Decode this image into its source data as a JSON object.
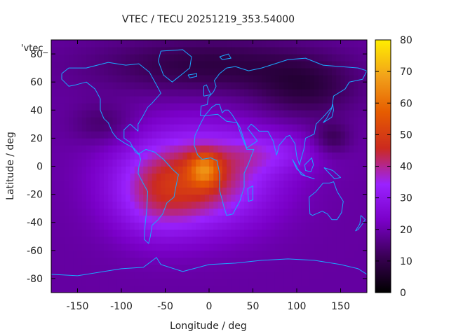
{
  "chart_data": {
    "type": "heatmap",
    "title": "VTEC / TECU 20251219_353.54000",
    "xlabel": "Longitude / deg",
    "ylabel": "Latitude / deg",
    "xlim": [
      -180,
      180
    ],
    "ylim": [
      -90,
      90
    ],
    "x_ticks": [
      -150,
      -100,
      -50,
      0,
      50,
      100,
      150
    ],
    "y_ticks": [
      -80,
      -60,
      -40,
      -20,
      0,
      20,
      40,
      60,
      80
    ],
    "y_tick_labels": [
      "-80",
      "-60",
      "-40",
      "-20",
      "0",
      "20",
      "40",
      "60",
      "80"
    ],
    "colorbar": {
      "range": [
        0,
        80
      ],
      "ticks": [
        0,
        10,
        20,
        30,
        40,
        50,
        60,
        70,
        80
      ],
      "palette_stops": [
        "#000000",
        "#3a0055",
        "#7a00c8",
        "#9a22ff",
        "#cc2a1e",
        "#e65c00",
        "#f2a21a",
        "#ffee00"
      ]
    },
    "legend": "'vtec_",
    "field": {
      "background_tecu": 19,
      "peak_tecu": 66,
      "anomalies": [
        {
          "lon": -15,
          "lat": -8,
          "sigma_lon": 58,
          "sigma_lat": 24,
          "amp": 27
        },
        {
          "lon": -5,
          "lat": -2,
          "sigma_lon": 12,
          "sigma_lat": 8,
          "amp": 20
        },
        {
          "lon": -60,
          "lat": -25,
          "sigma_lon": 35,
          "sigma_lat": 20,
          "amp": 9
        },
        {
          "lon": 70,
          "lat": 10,
          "sigma_lon": 40,
          "sigma_lat": 10,
          "amp": 9
        },
        {
          "lon": 0,
          "lat": 72,
          "sigma_lon": 90,
          "sigma_lat": 14,
          "amp": -10
        },
        {
          "lon": 110,
          "lat": 55,
          "sigma_lon": 40,
          "sigma_lat": 14,
          "amp": -9
        },
        {
          "lon": -120,
          "lat": 30,
          "sigma_lon": 25,
          "sigma_lat": 10,
          "amp": -6
        },
        {
          "lon": 140,
          "lat": 20,
          "sigma_lon": 15,
          "sigma_lat": 8,
          "amp": -8
        }
      ]
    },
    "coastlines": [
      {
        "name": "north-america",
        "points": [
          [
            -168,
            66
          ],
          [
            -160,
            70
          ],
          [
            -140,
            70
          ],
          [
            -115,
            74
          ],
          [
            -95,
            72
          ],
          [
            -80,
            73
          ],
          [
            -68,
            67
          ],
          [
            -60,
            58
          ],
          [
            -55,
            52
          ],
          [
            -65,
            45
          ],
          [
            -70,
            42
          ],
          [
            -76,
            35
          ],
          [
            -81,
            30
          ],
          [
            -81,
            25
          ],
          [
            -90,
            30
          ],
          [
            -97,
            26
          ],
          [
            -97,
            20
          ],
          [
            -90,
            17
          ],
          [
            -84,
            10
          ],
          [
            -79,
            8
          ],
          [
            -86,
            13
          ],
          [
            -95,
            16
          ],
          [
            -105,
            20
          ],
          [
            -110,
            24
          ],
          [
            -115,
            31
          ],
          [
            -120,
            34
          ],
          [
            -124,
            40
          ],
          [
            -124,
            48
          ],
          [
            -130,
            55
          ],
          [
            -140,
            60
          ],
          [
            -152,
            58
          ],
          [
            -160,
            57
          ],
          [
            -168,
            62
          ],
          [
            -168,
            66
          ]
        ]
      },
      {
        "name": "greenland",
        "points": [
          [
            -55,
            82
          ],
          [
            -30,
            83
          ],
          [
            -20,
            78
          ],
          [
            -22,
            70
          ],
          [
            -42,
            60
          ],
          [
            -52,
            65
          ],
          [
            -58,
            75
          ],
          [
            -55,
            82
          ]
        ]
      },
      {
        "name": "south-america",
        "points": [
          [
            -80,
            9
          ],
          [
            -72,
            12
          ],
          [
            -62,
            10
          ],
          [
            -52,
            5
          ],
          [
            -42,
            -2
          ],
          [
            -35,
            -6
          ],
          [
            -38,
            -15
          ],
          [
            -40,
            -22
          ],
          [
            -48,
            -26
          ],
          [
            -53,
            -34
          ],
          [
            -58,
            -38
          ],
          [
            -65,
            -42
          ],
          [
            -67,
            -50
          ],
          [
            -69,
            -55
          ],
          [
            -74,
            -52
          ],
          [
            -73,
            -42
          ],
          [
            -71,
            -30
          ],
          [
            -70,
            -18
          ],
          [
            -77,
            -10
          ],
          [
            -81,
            -5
          ],
          [
            -80,
            0
          ],
          [
            -78,
            5
          ],
          [
            -80,
            9
          ]
        ]
      },
      {
        "name": "africa",
        "points": [
          [
            -17,
            15
          ],
          [
            -16,
            22
          ],
          [
            -10,
            30
          ],
          [
            -5,
            36
          ],
          [
            10,
            37
          ],
          [
            20,
            32
          ],
          [
            32,
            31
          ],
          [
            35,
            25
          ],
          [
            43,
            12
          ],
          [
            51,
            12
          ],
          [
            45,
            2
          ],
          [
            40,
            -5
          ],
          [
            40,
            -15
          ],
          [
            35,
            -25
          ],
          [
            27,
            -34
          ],
          [
            20,
            -35
          ],
          [
            17,
            -29
          ],
          [
            12,
            -17
          ],
          [
            12,
            -5
          ],
          [
            9,
            4
          ],
          [
            2,
            6
          ],
          [
            -8,
            5
          ],
          [
            -13,
            8
          ],
          [
            -17,
            15
          ]
        ]
      },
      {
        "name": "eurasia",
        "points": [
          [
            -10,
            36
          ],
          [
            -9,
            43
          ],
          [
            -2,
            44
          ],
          [
            -1,
            49
          ],
          [
            5,
            53
          ],
          [
            8,
            57
          ],
          [
            6,
            61
          ],
          [
            12,
            66
          ],
          [
            20,
            70
          ],
          [
            30,
            71
          ],
          [
            45,
            68
          ],
          [
            60,
            70
          ],
          [
            75,
            73
          ],
          [
            90,
            76
          ],
          [
            110,
            77
          ],
          [
            130,
            72
          ],
          [
            150,
            71
          ],
          [
            170,
            70
          ],
          [
            180,
            68
          ],
          [
            175,
            62
          ],
          [
            160,
            60
          ],
          [
            155,
            55
          ],
          [
            142,
            50
          ],
          [
            140,
            42
          ],
          [
            130,
            35
          ],
          [
            122,
            30
          ],
          [
            120,
            23
          ],
          [
            110,
            20
          ],
          [
            108,
            12
          ],
          [
            103,
            1
          ],
          [
            100,
            7
          ],
          [
            98,
            16
          ],
          [
            92,
            22
          ],
          [
            88,
            21
          ],
          [
            80,
            15
          ],
          [
            77,
            8
          ],
          [
            73,
            18
          ],
          [
            67,
            25
          ],
          [
            57,
            25
          ],
          [
            52,
            28
          ],
          [
            48,
            30
          ],
          [
            44,
            27
          ],
          [
            55,
            18
          ],
          [
            43,
            13
          ],
          [
            35,
            28
          ],
          [
            32,
            31
          ],
          [
            26,
            37
          ],
          [
            22,
            40
          ],
          [
            18,
            40
          ],
          [
            15,
            38
          ],
          [
            12,
            44
          ],
          [
            8,
            44
          ],
          [
            3,
            42
          ],
          [
            -5,
            36
          ],
          [
            -10,
            36
          ]
        ]
      },
      {
        "name": "australia",
        "points": [
          [
            114,
            -22
          ],
          [
            122,
            -18
          ],
          [
            130,
            -12
          ],
          [
            137,
            -12
          ],
          [
            142,
            -11
          ],
          [
            146,
            -18
          ],
          [
            153,
            -25
          ],
          [
            151,
            -33
          ],
          [
            146,
            -38
          ],
          [
            140,
            -38
          ],
          [
            135,
            -34
          ],
          [
            129,
            -32
          ],
          [
            118,
            -35
          ],
          [
            115,
            -34
          ],
          [
            114,
            -22
          ]
        ]
      },
      {
        "name": "antarctica",
        "points": [
          [
            -180,
            -77
          ],
          [
            -150,
            -78
          ],
          [
            -100,
            -73
          ],
          [
            -75,
            -72
          ],
          [
            -60,
            -65
          ],
          [
            -55,
            -70
          ],
          [
            -30,
            -75
          ],
          [
            0,
            -70
          ],
          [
            30,
            -69
          ],
          [
            60,
            -67
          ],
          [
            90,
            -66
          ],
          [
            120,
            -67
          ],
          [
            150,
            -70
          ],
          [
            170,
            -73
          ],
          [
            180,
            -77
          ]
        ]
      },
      {
        "name": "madagascar",
        "points": [
          [
            44,
            -16
          ],
          [
            50,
            -14
          ],
          [
            50,
            -24
          ],
          [
            45,
            -25
          ],
          [
            44,
            -16
          ]
        ]
      },
      {
        "name": "british-isles",
        "points": [
          [
            -6,
            50
          ],
          [
            2,
            51
          ],
          [
            -1,
            55
          ],
          [
            -3,
            58
          ],
          [
            -6,
            57
          ],
          [
            -6,
            50
          ]
        ]
      },
      {
        "name": "japan",
        "points": [
          [
            130,
            31
          ],
          [
            140,
            35
          ],
          [
            142,
            40
          ],
          [
            141,
            44
          ],
          [
            139,
            40
          ],
          [
            134,
            34
          ],
          [
            130,
            31
          ]
        ]
      },
      {
        "name": "new-zealand",
        "points": [
          [
            173,
            -35
          ],
          [
            178,
            -38
          ],
          [
            175,
            -41
          ],
          [
            170,
            -45
          ],
          [
            167,
            -46
          ],
          [
            172,
            -41
          ],
          [
            173,
            -35
          ]
        ]
      },
      {
        "name": "indonesia",
        "points": [
          [
            95,
            5
          ],
          [
            105,
            -6
          ],
          [
            115,
            -8
          ],
          [
            120,
            -9
          ],
          [
            110,
            -7
          ],
          [
            100,
            -2
          ],
          [
            95,
            5
          ]
        ]
      },
      {
        "name": "borneo",
        "points": [
          [
            109,
            1
          ],
          [
            117,
            6
          ],
          [
            119,
            1
          ],
          [
            116,
            -4
          ],
          [
            110,
            -3
          ],
          [
            109,
            1
          ]
        ]
      },
      {
        "name": "new-guinea",
        "points": [
          [
            131,
            -1
          ],
          [
            141,
            -3
          ],
          [
            150,
            -8
          ],
          [
            143,
            -9
          ],
          [
            137,
            -5
          ],
          [
            131,
            -1
          ]
        ]
      },
      {
        "name": "iceland",
        "points": [
          [
            -24,
            65
          ],
          [
            -14,
            66
          ],
          [
            -14,
            64
          ],
          [
            -22,
            63
          ],
          [
            -24,
            65
          ]
        ]
      },
      {
        "name": "svalbard",
        "points": [
          [
            12,
            78
          ],
          [
            22,
            80
          ],
          [
            25,
            77
          ],
          [
            15,
            76
          ],
          [
            12,
            78
          ]
        ]
      }
    ]
  }
}
